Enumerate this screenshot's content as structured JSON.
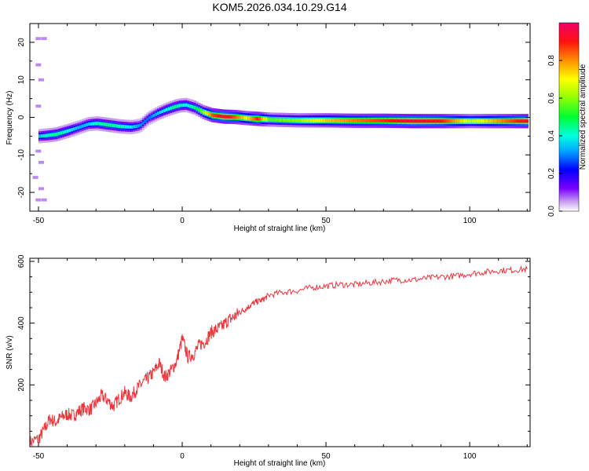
{
  "title": "KOM5.2026.034.10.29.G14",
  "chart_data": [
    {
      "type": "heatmap",
      "xlabel": "Height of straight line (km)",
      "ylabel": "Frequency (Hz)",
      "xlim": [
        -53,
        121
      ],
      "ylim": [
        -25,
        25
      ],
      "xticks": [
        -50,
        0,
        50,
        100
      ],
      "yticks": [
        -20,
        -10,
        0,
        10,
        20
      ],
      "ridge": {
        "x": [
          -50,
          -47,
          -44,
          -40,
          -36,
          -33,
          -30,
          -26,
          -22,
          -18,
          -15,
          -12,
          -9,
          -6,
          -3,
          -1,
          1,
          4,
          7,
          10,
          14,
          18,
          22,
          26,
          30,
          40,
          50,
          60,
          70,
          80,
          90,
          100,
          110,
          120
        ],
        "f": [
          -5,
          -4.8,
          -4.5,
          -3.6,
          -2.6,
          -1.8,
          -1.6,
          -2,
          -2.4,
          -2.6,
          -2.2,
          -0.2,
          1,
          2,
          2.8,
          3.2,
          3.3,
          2.6,
          1.4,
          0.6,
          0.2,
          0.1,
          -0.2,
          -0.4,
          -0.6,
          -0.8,
          -0.8,
          -0.9,
          -0.9,
          -1,
          -1,
          -1,
          -1,
          -1
        ],
        "amplitude": [
          0.35,
          0.42,
          0.45,
          0.4,
          0.33,
          0.36,
          0.42,
          0.45,
          0.42,
          0.38,
          0.3,
          0.28,
          0.35,
          0.4,
          0.45,
          0.42,
          0.4,
          0.45,
          0.6,
          0.85,
          0.95,
          0.85,
          0.7,
          0.9,
          0.55,
          0.6,
          0.75,
          0.82,
          0.88,
          0.95,
          0.9,
          0.65,
          0.8,
          0.95
        ]
      },
      "colorbar": {
        "label": "Normalized spectral amplitude",
        "ticks": [
          0.0,
          0.2,
          0.4,
          0.6,
          0.8
        ],
        "range": [
          0,
          1
        ]
      }
    },
    {
      "type": "line",
      "xlabel": "Height of straight line (km)",
      "ylabel": "SNR (v/v)",
      "xlim": [
        -53,
        121
      ],
      "ylim": [
        0,
        610
      ],
      "xticks": [
        -50,
        0,
        50,
        100
      ],
      "yticks": [
        200,
        400,
        600
      ],
      "series": [
        {
          "name": "SNR",
          "color": "#e8383c",
          "x": [
            -53,
            -50,
            -48,
            -46,
            -44,
            -42,
            -40,
            -38,
            -36,
            -34,
            -32,
            -30,
            -28,
            -26,
            -24,
            -22,
            -20,
            -18,
            -16,
            -14,
            -12,
            -10,
            -8,
            -6,
            -4,
            -2,
            0,
            2,
            4,
            6,
            8,
            10,
            12,
            14,
            16,
            18,
            20,
            22,
            24,
            26,
            28,
            30,
            35,
            40,
            45,
            50,
            55,
            60,
            65,
            70,
            75,
            80,
            85,
            90,
            95,
            100,
            105,
            110,
            115,
            120
          ],
          "y": [
            15,
            25,
            55,
            90,
            80,
            95,
            105,
            100,
            115,
            125,
            120,
            140,
            165,
            150,
            130,
            155,
            175,
            160,
            185,
            205,
            220,
            240,
            270,
            225,
            245,
            275,
            350,
            290,
            300,
            330,
            340,
            370,
            380,
            390,
            410,
            420,
            435,
            445,
            460,
            470,
            475,
            490,
            500,
            505,
            515,
            520,
            525,
            525,
            530,
            535,
            540,
            540,
            545,
            550,
            552,
            560,
            565,
            570,
            572,
            575
          ]
        }
      ]
    }
  ],
  "colors": {
    "axis": "#000000",
    "snr_line": "#e8383c"
  }
}
